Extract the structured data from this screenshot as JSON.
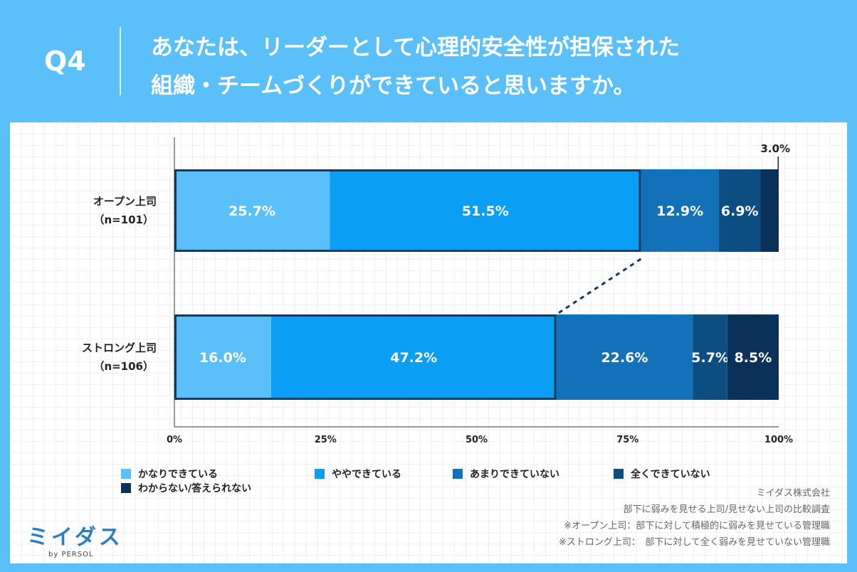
{
  "header": {
    "question_label": "Q4",
    "title_line1": "あなたは、リーダーとして心理的安全性が担保された",
    "title_line2": "組織・チームづくりができていると思いますか。"
  },
  "chart_data": {
    "type": "bar",
    "orientation": "horizontal-stacked-100",
    "categories": [
      {
        "label_line1": "オープン上司",
        "label_line2": "（n=101）"
      },
      {
        "label_line1": "ストロング上司",
        "label_line2": "（n=106）"
      }
    ],
    "series": [
      {
        "name": "かなりできている",
        "color": "#5bbff9",
        "values": [
          25.7,
          16.0
        ],
        "labels": [
          "25.7%",
          "16.0%"
        ]
      },
      {
        "name": "ややできている",
        "color": "#0a9ef5",
        "values": [
          51.5,
          47.2
        ],
        "labels": [
          "51.5%",
          "47.2%"
        ]
      },
      {
        "name": "あまりできていない",
        "color": "#1271b8",
        "values": [
          12.9,
          22.6
        ],
        "labels": [
          "12.9%",
          "22.6%"
        ]
      },
      {
        "name": "全くできていない",
        "color": "#0c4d82",
        "values": [
          6.9,
          5.7
        ],
        "labels": [
          "6.9%",
          "5.7%"
        ]
      },
      {
        "name": "わからない/答えられない",
        "color": "#0a3159",
        "values": [
          3.0,
          8.5
        ],
        "labels": [
          "3.0%",
          "8.5%"
        ]
      }
    ],
    "xlim": [
      0,
      100
    ],
    "xticks": [
      "0%",
      "25%",
      "50%",
      "75%",
      "100%"
    ],
    "highlight": "かなりできている + ややできている outlined and connected by dashed line"
  },
  "footer": {
    "company": "ミイダス株式会社",
    "survey": "部下に弱みを見せる上司/見せない上司の比較調査",
    "note1": "※オープン上司：部下に対して積極的に弱みを見せている管理職",
    "note2": "※ストロング上司：　部下に対して全く弱みを見せていない管理職",
    "logo_text": "ミイダス",
    "logo_sub": "by PERSOL"
  }
}
